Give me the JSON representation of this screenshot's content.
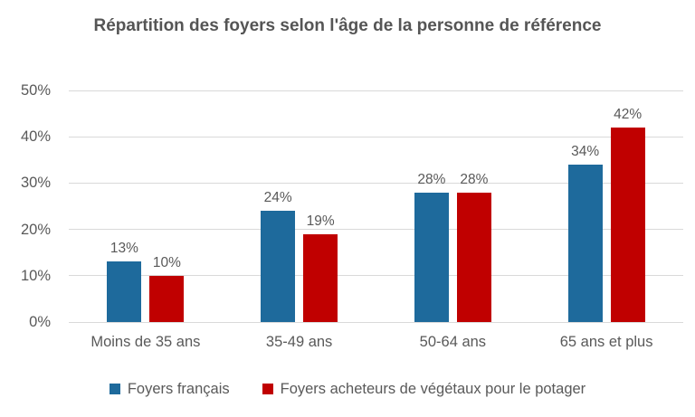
{
  "chart_data": {
    "type": "bar",
    "title": "Répartition des foyers selon l'âge de la personne de référence",
    "categories": [
      "Moins de 35 ans",
      "35-49 ans",
      "50-64 ans",
      "65 ans et plus"
    ],
    "series": [
      {
        "name": "Foyers français",
        "color": "#1e6a9c",
        "values": [
          13,
          24,
          28,
          34
        ]
      },
      {
        "name": "Foyers acheteurs de végétaux pour le potager",
        "color": "#c00000",
        "values": [
          10,
          19,
          28,
          42
        ]
      }
    ],
    "data_label_suffix": "%",
    "ylim": [
      0,
      50
    ],
    "ytick_labels": [
      "0%",
      "10%",
      "20%",
      "30%",
      "40%",
      "50%"
    ],
    "grid": true,
    "legend_position": "bottom",
    "colors": {
      "title_text": "#555555",
      "axis_text": "#595959",
      "data_label_text": "#595959",
      "gridline": "#d9d9d9",
      "background": "#ffffff"
    }
  }
}
